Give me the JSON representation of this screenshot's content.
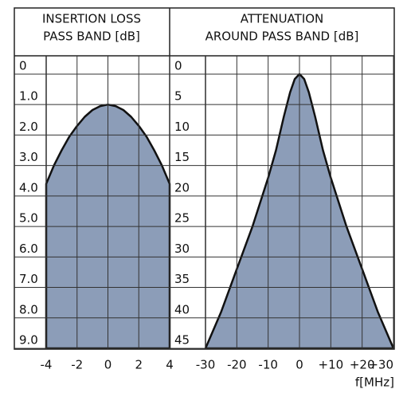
{
  "chart_data": [
    {
      "type": "area",
      "title_lines": [
        "INSERTION LOSS",
        "PASS BAND [dB]"
      ],
      "x": [
        -4,
        -3.5,
        -3,
        -2.5,
        -2,
        -1.5,
        -1,
        -0.5,
        0,
        0.5,
        1,
        1.5,
        2,
        2.5,
        3,
        3.5,
        4
      ],
      "series": [
        {
          "color": "#8c9db8",
          "values": [
            3.6,
            3.0,
            2.5,
            2.05,
            1.7,
            1.4,
            1.18,
            1.05,
            1.0,
            1.05,
            1.18,
            1.4,
            1.7,
            2.05,
            2.5,
            3.0,
            3.6
          ]
        }
      ],
      "xlim": [
        -4,
        4
      ],
      "xticks": [
        -4,
        -2,
        0,
        2,
        4
      ],
      "ylim": [
        -0.6,
        9
      ],
      "inverted": true,
      "yticks": [
        0,
        {
          "value": 1,
          "label": "1.0"
        },
        {
          "value": 2,
          "label": "2.0"
        },
        {
          "value": 3,
          "label": "3.0"
        },
        {
          "value": 4,
          "label": "4.0"
        },
        {
          "value": 5,
          "label": "5.0"
        },
        {
          "value": 6,
          "label": "6.0"
        },
        {
          "value": 7,
          "label": "7.0"
        },
        {
          "value": 8,
          "label": "8.0"
        },
        {
          "value": 9,
          "label": "9.0"
        }
      ],
      "grid": true
    },
    {
      "type": "area",
      "title_lines": [
        "ATTENUATION",
        "AROUND PASS BAND [dB]"
      ],
      "x": [
        -30,
        -25,
        -20,
        -15,
        -10,
        -7.5,
        -5,
        -3,
        -1.5,
        0,
        1.5,
        3,
        5,
        7.5,
        10,
        15,
        20,
        25,
        30
      ],
      "series": [
        {
          "color": "#8c9db8",
          "values": [
            45,
            39,
            32,
            25,
            17,
            12.5,
            7,
            3,
            0.8,
            0,
            0.8,
            3,
            7,
            12.5,
            17,
            25,
            32,
            39,
            45
          ]
        }
      ],
      "xlim": [
        -30,
        30
      ],
      "xticks": [
        -30,
        -20,
        -10,
        0,
        {
          "value": 10,
          "label": "+10"
        },
        {
          "value": 20,
          "label": "+20"
        },
        {
          "value": 30,
          "label": "+30"
        }
      ],
      "ylim": [
        -3,
        45
      ],
      "inverted": true,
      "yticks": [
        0,
        5,
        10,
        15,
        20,
        25,
        30,
        35,
        40,
        45
      ],
      "grid": true,
      "xlabel": "f[MHz]"
    }
  ]
}
